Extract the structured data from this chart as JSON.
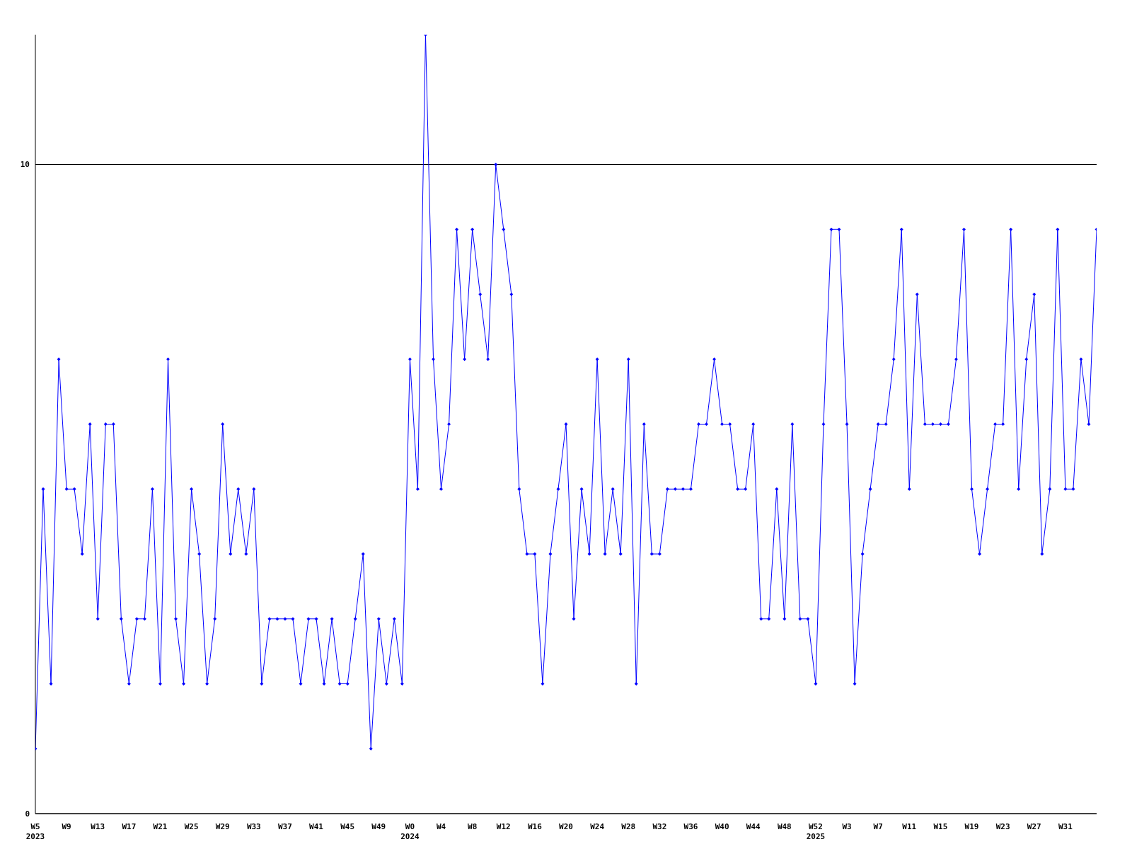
{
  "chart_data": {
    "type": "line",
    "categories": [
      "W5\n2023",
      null,
      null,
      null,
      "W9",
      null,
      null,
      null,
      "W13",
      null,
      null,
      null,
      "W17",
      null,
      null,
      null,
      "W21",
      null,
      null,
      null,
      "W25",
      null,
      null,
      null,
      "W29",
      null,
      null,
      null,
      "W33",
      null,
      null,
      null,
      "W37",
      null,
      null,
      null,
      "W41",
      null,
      null,
      null,
      "W45",
      null,
      null,
      null,
      "W49",
      null,
      null,
      null,
      "W0\n2024",
      null,
      null,
      null,
      "W4",
      null,
      null,
      null,
      "W8",
      null,
      null,
      null,
      "W12",
      null,
      null,
      null,
      "W16",
      null,
      null,
      null,
      "W20",
      null,
      null,
      null,
      "W24",
      null,
      null,
      null,
      "W28",
      null,
      null,
      null,
      "W32",
      null,
      null,
      null,
      "W36",
      null,
      null,
      null,
      "W40",
      null,
      null,
      null,
      "W44",
      null,
      null,
      null,
      "W48",
      null,
      null,
      null,
      "W52\n2025",
      null,
      null,
      null,
      "W3",
      null,
      null,
      null,
      "W7",
      null,
      null,
      null,
      "W11",
      null,
      null,
      null,
      "W15",
      null,
      null,
      null,
      "W19",
      null,
      null,
      null,
      "W23",
      null,
      null,
      null,
      "W27",
      null,
      null,
      null,
      "W31",
      null,
      null,
      null,
      null
    ],
    "series": [
      {
        "color": "#0000ff",
        "values": [
          1,
          5,
          2,
          7,
          5,
          5,
          4,
          6,
          3,
          6,
          6,
          3,
          2,
          3,
          3,
          5,
          2,
          7,
          3,
          2,
          5,
          4,
          2,
          3,
          6,
          4,
          5,
          4,
          5,
          2,
          3,
          3,
          3,
          3,
          2,
          3,
          3,
          2,
          3,
          2,
          2,
          3,
          4,
          1,
          3,
          2,
          3,
          2,
          7,
          5,
          12,
          7,
          5,
          6,
          9,
          7,
          9,
          8,
          7,
          10,
          9,
          8,
          5,
          4,
          4,
          2,
          4,
          5,
          6,
          3,
          5,
          4,
          7,
          4,
          5,
          4,
          7,
          2,
          6,
          4,
          4,
          5,
          5,
          5,
          5,
          6,
          6,
          7,
          6,
          6,
          5,
          5,
          6,
          3,
          3,
          5,
          3,
          6,
          3,
          3,
          2,
          6,
          9,
          9,
          6,
          2,
          4,
          5,
          6,
          6,
          7,
          9,
          5,
          8,
          6,
          6,
          6,
          6,
          7,
          9,
          5,
          4,
          5,
          6,
          6,
          9,
          5,
          7,
          8,
          4,
          5,
          9,
          5,
          5,
          7,
          6,
          9
        ]
      }
    ],
    "ylim": [
      0,
      12
    ],
    "yticks": [
      0,
      10
    ],
    "grid": "y",
    "marker": "diamond",
    "line_style": "solid"
  }
}
